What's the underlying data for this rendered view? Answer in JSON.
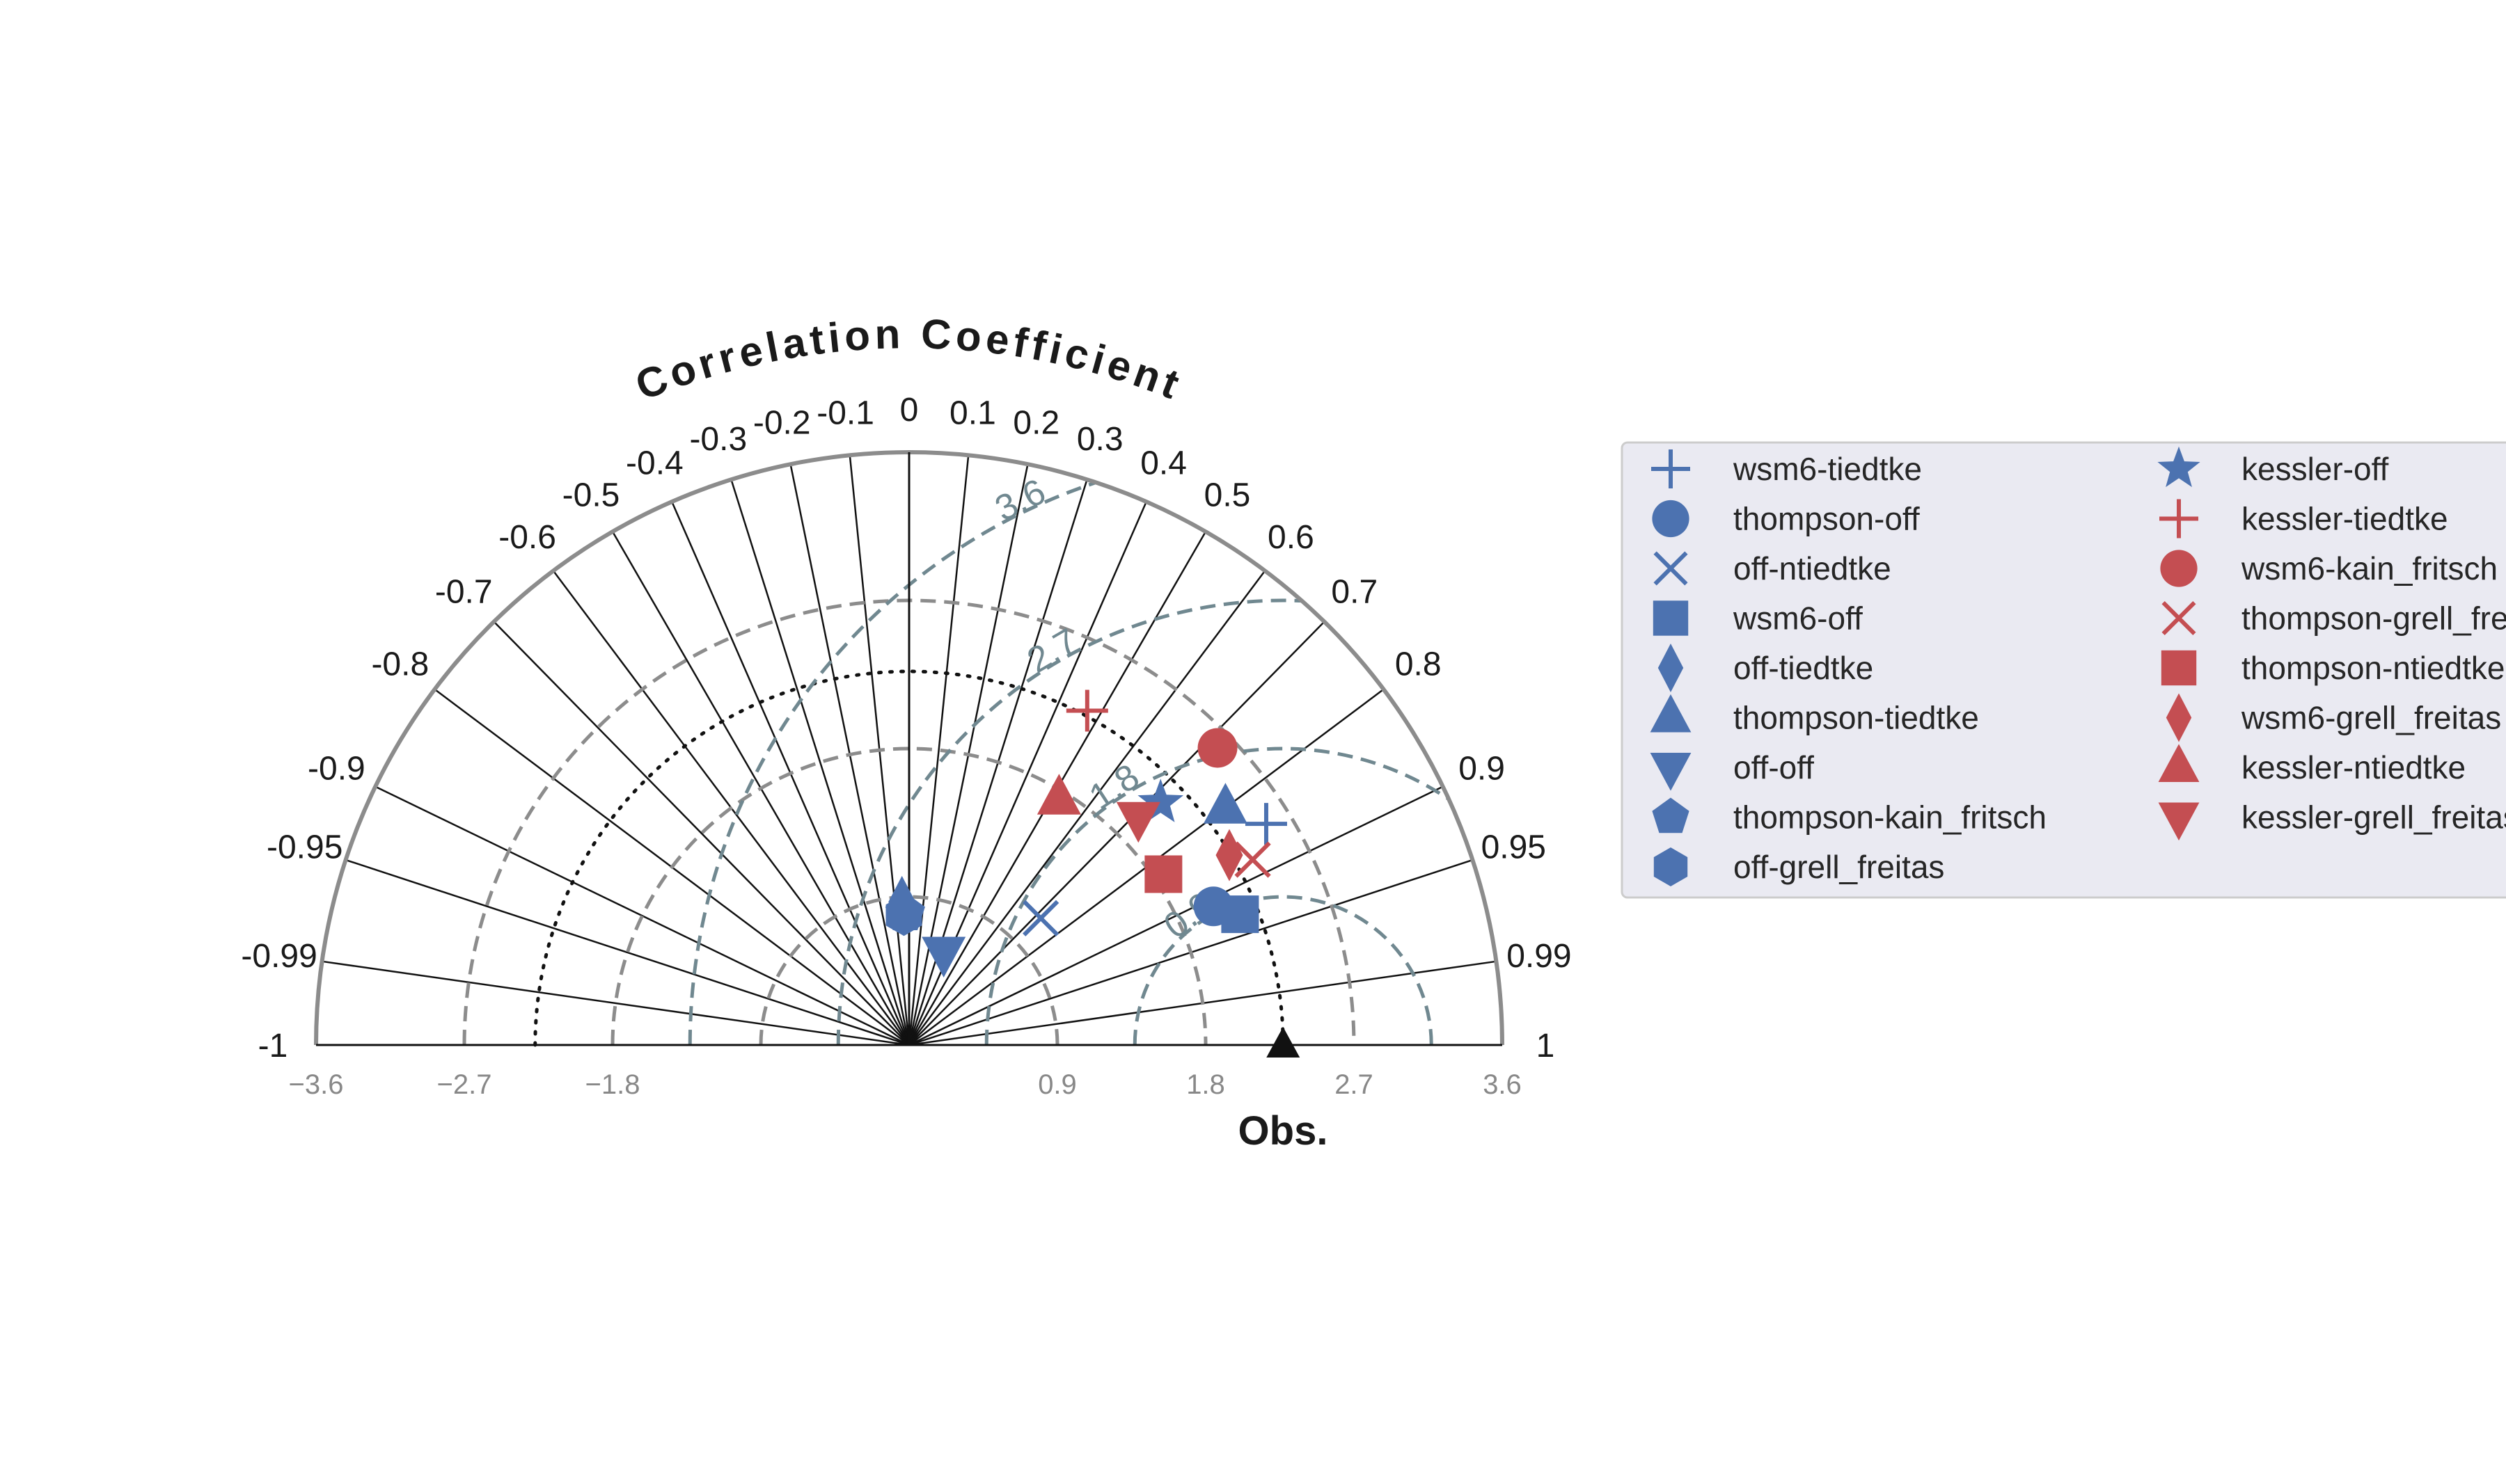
{
  "chart_data": {
    "type": "scatter",
    "subtype": "taylor-diagram-extended",
    "title": "Correlation Coefficient",
    "xlabel": "Obs.",
    "sd_range": [
      -3.6,
      3.6
    ],
    "sd_ticks": [
      "−3.6",
      "−2.7",
      "−1.8",
      "0.9",
      "1.8",
      "2.7",
      "3.6"
    ],
    "sd_tick_values": [
      -3.6,
      -2.7,
      -1.8,
      0.9,
      1.8,
      2.7,
      3.6
    ],
    "correlation_ticks": [
      {
        "value": -1,
        "label": "-1"
      },
      {
        "value": -0.99,
        "label": "-0.99"
      },
      {
        "value": -0.95,
        "label": "-0.95"
      },
      {
        "value": -0.9,
        "label": "-0.9"
      },
      {
        "value": -0.8,
        "label": "-0.8"
      },
      {
        "value": -0.7,
        "label": "-0.7"
      },
      {
        "value": -0.6,
        "label": "-0.6"
      },
      {
        "value": -0.5,
        "label": "-0.5"
      },
      {
        "value": -0.4,
        "label": "-0.4"
      },
      {
        "value": -0.3,
        "label": "-0.3"
      },
      {
        "value": -0.2,
        "label": "-0.2"
      },
      {
        "value": -0.1,
        "label": "-0.1"
      },
      {
        "value": 0,
        "label": "0"
      },
      {
        "value": 0.1,
        "label": "0.1"
      },
      {
        "value": 0.2,
        "label": "0.2"
      },
      {
        "value": 0.3,
        "label": "0.3"
      },
      {
        "value": 0.4,
        "label": "0.4"
      },
      {
        "value": 0.5,
        "label": "0.5"
      },
      {
        "value": 0.6,
        "label": "0.6"
      },
      {
        "value": 0.7,
        "label": "0.7"
      },
      {
        "value": 0.8,
        "label": "0.8"
      },
      {
        "value": 0.9,
        "label": "0.9"
      },
      {
        "value": 0.95,
        "label": "0.95"
      },
      {
        "value": 0.99,
        "label": "0.99"
      },
      {
        "value": 1,
        "label": "1"
      }
    ],
    "reference_std": 2.27,
    "std_contours": [
      0.9,
      1.8,
      2.7
    ],
    "rms_contours": [
      {
        "value": 0.9,
        "label": "0.9"
      },
      {
        "value": 1.8,
        "label": "1.8"
      },
      {
        "value": 2.7,
        "label": "2.7"
      },
      {
        "value": 3.6,
        "label": "3.6"
      }
    ],
    "colors": {
      "blue": "#4c72b0",
      "red": "#c44e52",
      "axis": "#8c8c8c",
      "rms": "#708890",
      "legend_bg": "#eaeaf2"
    },
    "series": [
      {
        "name": "wsm6-tiedtke",
        "marker": "plus",
        "color": "#4c72b0",
        "corr": 0.85,
        "std": 2.55
      },
      {
        "name": "thompson-off",
        "marker": "circle",
        "color": "#4c72b0",
        "corr": 0.91,
        "std": 2.03
      },
      {
        "name": "off-ntiedtke",
        "marker": "x",
        "color": "#4c72b0",
        "corr": 0.72,
        "std": 1.11
      },
      {
        "name": "wsm6-off",
        "marker": "square",
        "color": "#4c72b0",
        "corr": 0.93,
        "std": 2.16
      },
      {
        "name": "off-tiedtke",
        "marker": "thin-diamond",
        "color": "#4c72b0",
        "corr": -0.05,
        "std": 0.87
      },
      {
        "name": "thompson-tiedtke",
        "marker": "triangle-up",
        "color": "#4c72b0",
        "corr": 0.8,
        "std": 2.4
      },
      {
        "name": "off-off",
        "marker": "triangle-down",
        "color": "#4c72b0",
        "corr": 0.35,
        "std": 0.6
      },
      {
        "name": "thompson-kain_fritsch",
        "marker": "pentagon",
        "color": "#4c72b0",
        "corr": -0.03,
        "std": 0.8
      },
      {
        "name": "off-grell_freitas",
        "marker": "hexagon",
        "color": "#4c72b0",
        "corr": -0.04,
        "std": 0.79
      },
      {
        "name": "kessler-off",
        "marker": "star",
        "color": "#4c72b0",
        "corr": 0.72,
        "std": 2.12
      },
      {
        "name": "kessler-tiedtke",
        "marker": "plus",
        "color": "#c44e52",
        "corr": 0.47,
        "std": 2.3
      },
      {
        "name": "wsm6-kain_fritsch",
        "marker": "circle",
        "color": "#c44e52",
        "corr": 0.72,
        "std": 2.6
      },
      {
        "name": "thompson-grell_freitas",
        "marker": "x",
        "color": "#c44e52",
        "corr": 0.88,
        "std": 2.37
      },
      {
        "name": "thompson-ntiedtke",
        "marker": "square",
        "color": "#c44e52",
        "corr": 0.83,
        "std": 1.86
      },
      {
        "name": "wsm6-grell_freitas",
        "marker": "thin-diamond",
        "color": "#c44e52",
        "corr": 0.86,
        "std": 2.26
      },
      {
        "name": "kessler-ntiedtke",
        "marker": "triangle-up",
        "color": "#c44e52",
        "corr": 0.52,
        "std": 1.75
      },
      {
        "name": "kessler-grell_freitas",
        "marker": "triangle-down",
        "color": "#c44e52",
        "corr": 0.71,
        "std": 1.96
      }
    ],
    "legend": {
      "placement": "right",
      "columns": 2
    }
  }
}
